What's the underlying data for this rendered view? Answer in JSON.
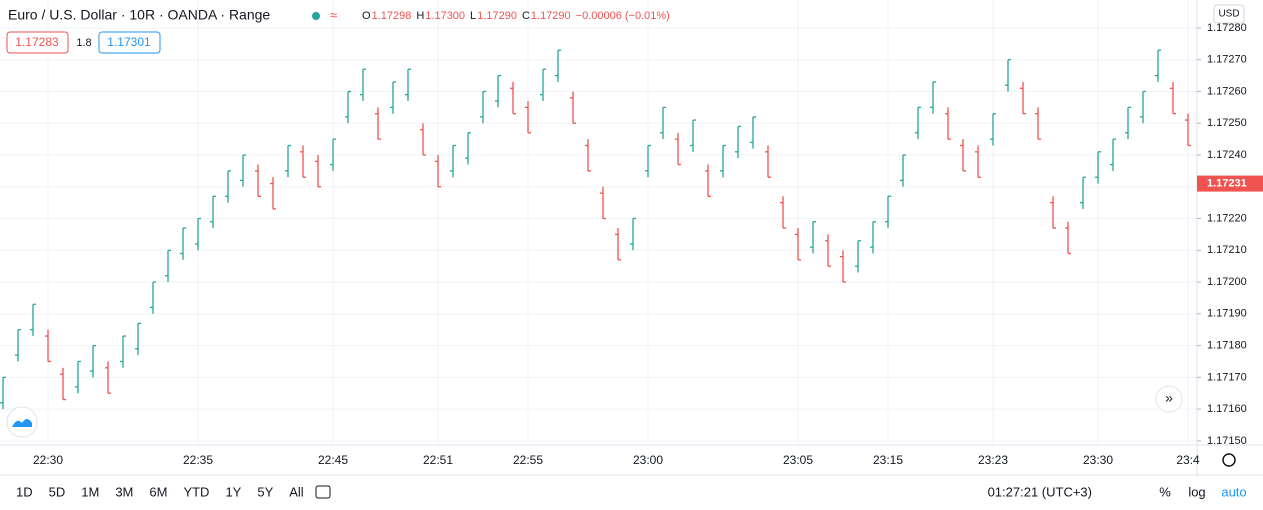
{
  "chart_data": {
    "type": "ohlc",
    "up_color": "#26a69a",
    "down_color": "#ef5350",
    "grid": true,
    "categories": [
      null,
      null,
      null,
      "22:30",
      null,
      null,
      null,
      null,
      null,
      null,
      null,
      null,
      null,
      "22:35",
      null,
      null,
      null,
      null,
      null,
      null,
      null,
      null,
      "22:45",
      null,
      null,
      null,
      null,
      null,
      null,
      "22:51",
      null,
      null,
      null,
      null,
      null,
      "22:55",
      null,
      null,
      null,
      null,
      null,
      null,
      null,
      "23:00",
      null,
      null,
      null,
      null,
      null,
      null,
      null,
      null,
      null,
      "23:05",
      null,
      null,
      null,
      null,
      null,
      "23:15",
      null,
      null,
      null,
      null,
      null,
      null,
      "23:23",
      null,
      null,
      null,
      null,
      null,
      null,
      "23:30",
      null,
      null,
      null,
      null,
      null,
      "23:4"
    ],
    "open": [
      1.17162,
      1.17177,
      1.17185,
      1.17183,
      1.17171,
      1.17167,
      1.17172,
      1.17173,
      1.17175,
      1.17179,
      1.17192,
      1.17202,
      1.17209,
      1.17212,
      1.17219,
      1.17227,
      1.17232,
      1.17235,
      1.17231,
      1.17235,
      1.17241,
      1.17238,
      1.17237,
      1.17252,
      1.17259,
      1.17253,
      1.17255,
      1.17259,
      1.17248,
      1.17238,
      1.17235,
      1.17239,
      1.17252,
      1.17257,
      1.17261,
      1.17255,
      1.17259,
      1.17265,
      1.17258,
      1.17243,
      1.17228,
      1.17215,
      1.17212,
      1.17235,
      1.17247,
      1.17245,
      1.17243,
      1.17235,
      1.17235,
      1.17241,
      1.17244,
      1.17241,
      1.17225,
      1.17215,
      1.17211,
      1.17213,
      1.17208,
      1.17205,
      1.17211,
      1.17219,
      1.17232,
      1.17247,
      1.17255,
      1.17253,
      1.17243,
      1.17241,
      1.17245,
      1.17262,
      1.17261,
      1.17253,
      1.17225,
      1.17217,
      1.17225,
      1.17233,
      1.17237,
      1.17247,
      1.17252,
      1.17265,
      1.17261,
      1.17251
    ],
    "high": [
      1.1717,
      1.17185,
      1.17193,
      1.17185,
      1.17173,
      1.17175,
      1.1718,
      1.17175,
      1.17183,
      1.17187,
      1.172,
      1.1721,
      1.17217,
      1.1722,
      1.17227,
      1.17235,
      1.1724,
      1.17237,
      1.17233,
      1.17243,
      1.17243,
      1.1724,
      1.17245,
      1.1726,
      1.17267,
      1.17255,
      1.17263,
      1.17267,
      1.1725,
      1.1724,
      1.17243,
      1.17247,
      1.1726,
      1.17265,
      1.17263,
      1.17257,
      1.17267,
      1.17273,
      1.1726,
      1.17245,
      1.1723,
      1.17217,
      1.1722,
      1.17243,
      1.17255,
      1.17247,
      1.17251,
      1.17237,
      1.17243,
      1.17249,
      1.17252,
      1.17243,
      1.17227,
      1.17217,
      1.17219,
      1.17215,
      1.1721,
      1.17213,
      1.17219,
      1.17227,
      1.1724,
      1.17255,
      1.17263,
      1.17255,
      1.17245,
      1.17243,
      1.17253,
      1.1727,
      1.17263,
      1.17255,
      1.17227,
      1.17219,
      1.17233,
      1.17241,
      1.17245,
      1.17255,
      1.1726,
      1.17273,
      1.17263,
      1.17253
    ],
    "low": [
      1.1716,
      1.17175,
      1.17183,
      1.17175,
      1.17163,
      1.17165,
      1.1717,
      1.17165,
      1.17173,
      1.17177,
      1.1719,
      1.172,
      1.17207,
      1.1721,
      1.17217,
      1.17225,
      1.1723,
      1.17227,
      1.17223,
      1.17233,
      1.17233,
      1.1723,
      1.17235,
      1.1725,
      1.17257,
      1.17245,
      1.17253,
      1.17257,
      1.1724,
      1.1723,
      1.17233,
      1.17237,
      1.1725,
      1.17255,
      1.17253,
      1.17247,
      1.17257,
      1.17263,
      1.1725,
      1.17235,
      1.1722,
      1.17207,
      1.1721,
      1.17233,
      1.17245,
      1.17237,
      1.17241,
      1.17227,
      1.17233,
      1.17239,
      1.17242,
      1.17233,
      1.17217,
      1.17207,
      1.17209,
      1.17205,
      1.172,
      1.17203,
      1.17209,
      1.17217,
      1.1723,
      1.17245,
      1.17253,
      1.17245,
      1.17235,
      1.17233,
      1.17243,
      1.1726,
      1.17253,
      1.17245,
      1.17217,
      1.17209,
      1.17223,
      1.17231,
      1.17235,
      1.17245,
      1.1725,
      1.17263,
      1.17253,
      1.17243
    ],
    "close": [
      1.1717,
      1.17185,
      1.17193,
      1.17175,
      1.17163,
      1.17175,
      1.1718,
      1.17165,
      1.17183,
      1.17187,
      1.172,
      1.1721,
      1.17217,
      1.1722,
      1.17227,
      1.17235,
      1.1724,
      1.17227,
      1.17223,
      1.17243,
      1.17233,
      1.1723,
      1.17245,
      1.1726,
      1.17267,
      1.17245,
      1.17263,
      1.17267,
      1.1724,
      1.1723,
      1.17243,
      1.17247,
      1.1726,
      1.17265,
      1.17253,
      1.17247,
      1.17267,
      1.17273,
      1.1725,
      1.17235,
      1.1722,
      1.17207,
      1.1722,
      1.17243,
      1.17255,
      1.17237,
      1.17251,
      1.17227,
      1.17243,
      1.17249,
      1.17252,
      1.17233,
      1.17217,
      1.17207,
      1.17219,
      1.17205,
      1.172,
      1.17213,
      1.17219,
      1.17227,
      1.1724,
      1.17255,
      1.17263,
      1.17245,
      1.17235,
      1.17233,
      1.17253,
      1.1727,
      1.17253,
      1.17245,
      1.17217,
      1.17209,
      1.17233,
      1.17241,
      1.17245,
      1.17255,
      1.1726,
      1.17273,
      1.17253,
      1.17243
    ],
    "ylim": [
      1.171487,
      1.172888
    ],
    "yticks": [
      {
        "value": 1.1715,
        "label": "1.17150"
      },
      {
        "value": 1.1716,
        "label": "1.17160"
      },
      {
        "value": 1.1717,
        "label": "1.17170"
      },
      {
        "value": 1.1718,
        "label": "1.17180"
      },
      {
        "value": 1.1719,
        "label": "1.17190"
      },
      {
        "value": 1.172,
        "label": "1.17200"
      },
      {
        "value": 1.1721,
        "label": "1.17210"
      },
      {
        "value": 1.1722,
        "label": "1.17220"
      },
      {
        "value": 1.1723,
        "label": "1.17230"
      },
      {
        "value": 1.1724,
        "label": "1.17240"
      },
      {
        "value": 1.1725,
        "label": "1.17250"
      },
      {
        "value": 1.1726,
        "label": "1.17260"
      },
      {
        "value": 1.1727,
        "label": "1.17270"
      },
      {
        "value": 1.1728,
        "label": "1.17280"
      }
    ],
    "current_price": {
      "value": 1.17231,
      "label": "1.17231"
    },
    "currency": "USD"
  },
  "header": {
    "title": "Euro / U.S. Dollar · 10R · OANDA · Range",
    "ohlc_legend": [
      {
        "label": "O",
        "text": "1.17298"
      },
      {
        "label": "H",
        "text": "1.17300"
      },
      {
        "label": "L",
        "text": "1.17290"
      },
      {
        "label": "C",
        "text": "1.17290"
      }
    ],
    "change": "−0.00006 (−0.01%)",
    "bid": "1.17283",
    "spread": "1.8",
    "ask": "1.17301"
  },
  "toolbar": {
    "ranges": [
      "1D",
      "5D",
      "1M",
      "3M",
      "6M",
      "YTD",
      "1Y",
      "5Y",
      "All"
    ],
    "clock": "01:27:21 (UTC+3)",
    "percent": "%",
    "log": "log",
    "auto": "auto"
  }
}
